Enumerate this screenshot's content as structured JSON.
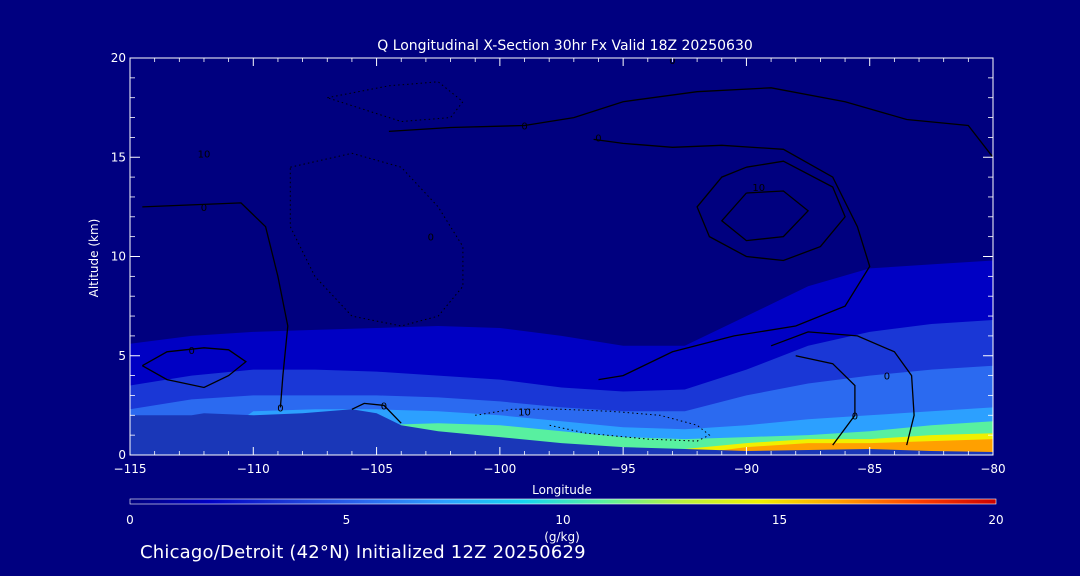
{
  "chart_data": {
    "type": "heatmap",
    "title": "Q Longitudinal X-Section 30hr  Fx Valid 18Z 20250630",
    "xlabel": "Longitude",
    "ylabel": "Altitude (km)",
    "xlim": [
      -115,
      -80
    ],
    "ylim": [
      0,
      20
    ],
    "x_ticks": [
      -115,
      -110,
      -105,
      -100,
      -95,
      -90,
      -85,
      -80
    ],
    "x_tick_labels": [
      "−115",
      "−110",
      "−105",
      "−100",
      "−95",
      "−90",
      "−85",
      "−80"
    ],
    "y_ticks": [
      0,
      5,
      10,
      15,
      20
    ],
    "y_tick_labels": [
      "0",
      "5",
      "10",
      "15",
      "20"
    ],
    "colorbar": {
      "min": 0,
      "max": 20,
      "unit": "(g/kg)",
      "ticks": [
        0,
        5,
        10,
        15,
        20
      ],
      "tick_labels": [
        "0",
        "5",
        "10",
        "15",
        "20"
      ]
    },
    "background_color": "#00007f",
    "terrain_color": "#1a37b8",
    "colormap": [
      "#00007f",
      "#0000c4",
      "#1a37d6",
      "#2b6af0",
      "#2ca0ff",
      "#16d4f0",
      "#58f0a0",
      "#b8f040",
      "#f0f000",
      "#ffa000",
      "#ff4000",
      "#cc0000"
    ],
    "humidity_layers": [
      {
        "q": 1,
        "top_km": [
          5.6,
          6.0,
          6.2,
          6.3,
          6.4,
          6.5,
          6.4,
          6.0,
          5.5,
          5.5,
          7.0,
          8.5,
          9.4,
          9.6,
          9.8
        ]
      },
      {
        "q": 3,
        "top_km": [
          3.5,
          4.0,
          4.3,
          4.3,
          4.2,
          4.0,
          3.8,
          3.4,
          3.2,
          3.3,
          4.3,
          5.5,
          6.2,
          6.6,
          6.8
        ]
      },
      {
        "q": 5,
        "top_km": [
          2.3,
          2.8,
          3.0,
          3.0,
          3.0,
          2.9,
          2.7,
          2.4,
          2.2,
          2.2,
          3.0,
          3.6,
          4.0,
          4.3,
          4.5
        ]
      },
      {
        "q": 8,
        "top_km": [
          0.0,
          0.0,
          2.2,
          2.3,
          2.3,
          2.2,
          2.0,
          1.7,
          1.4,
          1.3,
          1.5,
          1.8,
          2.0,
          2.2,
          2.4
        ]
      },
      {
        "q": 11,
        "top_km": [
          0.0,
          0.0,
          0.0,
          0.0,
          1.5,
          1.6,
          1.5,
          1.2,
          0.9,
          0.8,
          0.9,
          1.0,
          1.2,
          1.5,
          1.7
        ]
      },
      {
        "q": 14,
        "top_km": [
          0.0,
          0.0,
          0.0,
          0.0,
          0.0,
          0.0,
          0.0,
          0.0,
          0.0,
          0.3,
          0.6,
          0.8,
          0.8,
          1.0,
          1.1
        ]
      },
      {
        "q": 17,
        "top_km": [
          0.0,
          0.0,
          0.0,
          0.0,
          0.0,
          0.0,
          0.0,
          0.0,
          0.0,
          0.0,
          0.4,
          0.6,
          0.6,
          0.7,
          0.8
        ]
      }
    ],
    "layer_longitudes": [
      -115,
      -112.5,
      -110,
      -107.5,
      -105,
      -102.5,
      -100,
      -97.5,
      -95,
      -92.5,
      -90,
      -87.5,
      -85,
      -82.5,
      -80
    ],
    "terrain": {
      "lon": [
        -115,
        -112.5,
        -112,
        -110,
        -108,
        -106,
        -105,
        -104,
        -102.5,
        -100,
        -97.5,
        -95,
        -92.5,
        -90,
        -87.5,
        -85,
        -82.5,
        -80
      ],
      "alt": [
        2.0,
        2.0,
        2.1,
        2.0,
        2.1,
        2.3,
        2.1,
        1.5,
        1.2,
        0.9,
        0.6,
        0.4,
        0.3,
        0.2,
        0.25,
        0.3,
        0.2,
        0.15
      ]
    },
    "contours": [
      {
        "style": "solid",
        "label": "0",
        "label_at": [
          -108.9,
          2.4
        ],
        "points": [
          [
            -114.5,
            12.5
          ],
          [
            -112.5,
            12.6
          ],
          [
            -110.5,
            12.7
          ],
          [
            -109.5,
            11.5
          ],
          [
            -109.0,
            9.0
          ],
          [
            -108.6,
            6.5
          ],
          [
            -108.8,
            4.0
          ],
          [
            -108.9,
            2.4
          ]
        ]
      },
      {
        "style": "solid",
        "label": "0",
        "label_at": [
          -112.5,
          5.3
        ],
        "points": [
          [
            -114.5,
            4.5
          ],
          [
            -113.5,
            5.2
          ],
          [
            -112.0,
            5.4
          ],
          [
            -111.0,
            5.3
          ],
          [
            -110.3,
            4.7
          ],
          [
            -111.0,
            4.0
          ],
          [
            -112.0,
            3.4
          ],
          [
            -113.5,
            3.8
          ],
          [
            -114.5,
            4.5
          ]
        ]
      },
      {
        "style": "solid",
        "label": "0",
        "label_at": [
          -104.7,
          2.5
        ],
        "points": [
          [
            -106.0,
            2.3
          ],
          [
            -105.5,
            2.6
          ],
          [
            -104.7,
            2.5
          ],
          [
            -104.0,
            1.6
          ]
        ]
      },
      {
        "style": "solid",
        "label": "0",
        "label_at": [
          -96.0,
          16.0
        ],
        "points": [
          [
            -96.2,
            15.9
          ],
          [
            -95.0,
            15.7
          ],
          [
            -93.0,
            15.5
          ],
          [
            -91.0,
            15.6
          ],
          [
            -88.5,
            15.4
          ],
          [
            -86.5,
            14.0
          ],
          [
            -85.5,
            11.5
          ],
          [
            -85.0,
            9.5
          ],
          [
            -86.0,
            7.5
          ],
          [
            -88.0,
            6.5
          ],
          [
            -90.5,
            6.0
          ],
          [
            -93.0,
            5.2
          ],
          [
            -95.0,
            4.0
          ],
          [
            -96.0,
            3.8
          ]
        ]
      },
      {
        "style": "solid",
        "label": "0",
        "label_at": [
          -99.0,
          16.6
        ],
        "points": [
          [
            -104.5,
            16.3
          ],
          [
            -102.0,
            16.5
          ],
          [
            -99.0,
            16.6
          ],
          [
            -97.0,
            17.0
          ],
          [
            -95.0,
            17.8
          ],
          [
            -92.0,
            18.3
          ],
          [
            -89.0,
            18.5
          ],
          [
            -86.0,
            17.8
          ],
          [
            -83.5,
            16.9
          ],
          [
            -81.0,
            16.6
          ],
          [
            -80.0,
            15.0
          ]
        ]
      },
      {
        "style": "solid",
        "label": "0",
        "label_at": [
          -84.3,
          4.0
        ],
        "points": [
          [
            -89.0,
            5.5
          ],
          [
            -87.5,
            6.2
          ],
          [
            -85.5,
            6.0
          ],
          [
            -84.0,
            5.2
          ],
          [
            -83.3,
            4.0
          ],
          [
            -83.2,
            2.0
          ],
          [
            -83.5,
            0.5
          ]
        ]
      },
      {
        "style": "solid",
        "label": "0",
        "label_at": [
          -85.6,
          2.0
        ],
        "points": [
          [
            -88.0,
            5.0
          ],
          [
            -86.5,
            4.6
          ],
          [
            -85.6,
            3.5
          ],
          [
            -85.6,
            2.0
          ],
          [
            -86.5,
            0.5
          ]
        ]
      },
      {
        "style": "solid",
        "label": "10",
        "label_at": [
          -89.5,
          13.5
        ],
        "points": [
          [
            -90.0,
            14.5
          ],
          [
            -88.5,
            14.8
          ],
          [
            -86.5,
            13.5
          ],
          [
            -86.0,
            12.0
          ],
          [
            -87.0,
            10.5
          ],
          [
            -88.5,
            9.8
          ],
          [
            -90.0,
            10.0
          ],
          [
            -91.5,
            11.0
          ],
          [
            -92.0,
            12.5
          ],
          [
            -91.0,
            14.0
          ],
          [
            -90.0,
            14.5
          ]
        ]
      },
      {
        "style": "solid",
        "label": "",
        "label_at": [
          -89.5,
          12.0
        ],
        "points": [
          [
            -90.0,
            13.2
          ],
          [
            -88.5,
            13.3
          ],
          [
            -87.5,
            12.3
          ],
          [
            -88.5,
            11.0
          ],
          [
            -90.0,
            10.8
          ],
          [
            -91.0,
            11.8
          ],
          [
            -90.0,
            13.2
          ]
        ]
      },
      {
        "style": "dotted",
        "label": "10",
        "label_at": [
          -99.0,
          2.2
        ],
        "points": [
          [
            -101.0,
            2.0
          ],
          [
            -99.5,
            2.3
          ],
          [
            -97.5,
            2.3
          ],
          [
            -95.5,
            2.2
          ],
          [
            -93.5,
            2.0
          ],
          [
            -92.0,
            1.5
          ],
          [
            -91.5,
            1.0
          ],
          [
            -92.0,
            0.7
          ],
          [
            -94.0,
            0.8
          ],
          [
            -96.5,
            1.1
          ],
          [
            -98.0,
            1.5
          ]
        ]
      },
      {
        "style": "dotted",
        "label": "",
        "label_at": [
          -102.0,
          10.0
        ],
        "points": [
          [
            -108.5,
            14.5
          ],
          [
            -106.0,
            15.2
          ],
          [
            -104.0,
            14.5
          ],
          [
            -102.5,
            12.5
          ],
          [
            -101.5,
            10.5
          ],
          [
            -101.5,
            8.5
          ],
          [
            -102.5,
            7.0
          ],
          [
            -104.0,
            6.5
          ],
          [
            -106.0,
            7.0
          ],
          [
            -107.5,
            9.0
          ],
          [
            -108.5,
            11.5
          ],
          [
            -108.5,
            14.5
          ]
        ]
      },
      {
        "style": "dotted",
        "label": "",
        "label_at": [
          -103.0,
          18.0
        ],
        "points": [
          [
            -107.0,
            18.0
          ],
          [
            -104.5,
            18.6
          ],
          [
            -102.5,
            18.8
          ],
          [
            -101.5,
            17.8
          ],
          [
            -102.0,
            17.0
          ],
          [
            -104.0,
            16.8
          ],
          [
            -107.0,
            18.0
          ]
        ]
      }
    ],
    "contour_labels": [
      {
        "text": "0",
        "at": [
          -93.0,
          19.9
        ]
      },
      {
        "text": "0",
        "at": [
          -112.0,
          12.5
        ]
      },
      {
        "text": "10",
        "at": [
          -112.0,
          15.2
        ]
      },
      {
        "text": "0",
        "at": [
          -102.8,
          11.0
        ]
      }
    ]
  },
  "caption": "Chicago/Detroit (42°N) Initialized 12Z 20250629"
}
